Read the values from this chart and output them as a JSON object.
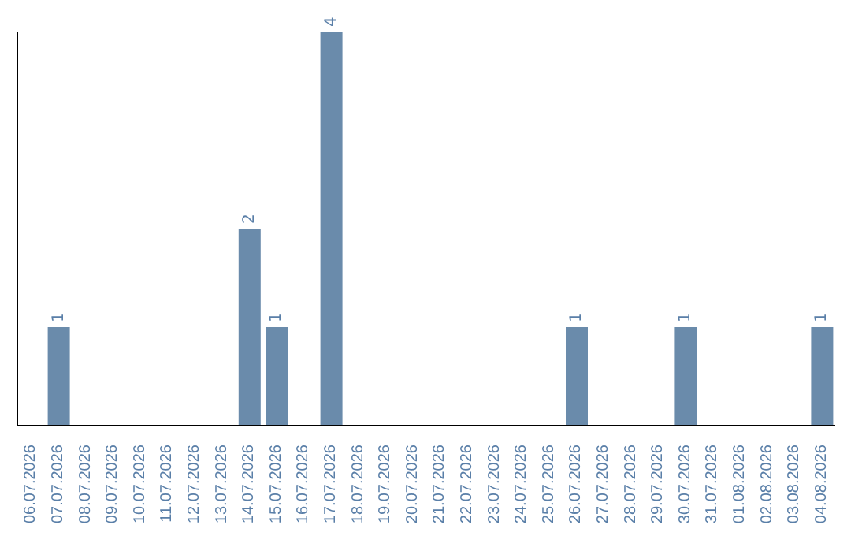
{
  "chart_data": {
    "type": "bar",
    "categories": [
      "06.07.2026",
      "07.07.2026",
      "08.07.2026",
      "09.07.2026",
      "10.07.2026",
      "11.07.2026",
      "12.07.2026",
      "13.07.2026",
      "14.07.2026",
      "15.07.2026",
      "16.07.2026",
      "17.07.2026",
      "18.07.2026",
      "19.07.2026",
      "20.07.2026",
      "21.07.2026",
      "22.07.2026",
      "23.07.2026",
      "24.07.2026",
      "25.07.2026",
      "26.07.2026",
      "27.07.2026",
      "28.07.2026",
      "29.07.2026",
      "30.07.2026",
      "31.07.2026",
      "01.08.2026",
      "02.08.2026",
      "03.08.2026",
      "04.08.2026"
    ],
    "values": [
      0,
      1,
      0,
      0,
      0,
      0,
      0,
      0,
      2,
      1,
      0,
      4,
      0,
      0,
      0,
      0,
      0,
      0,
      0,
      0,
      1,
      0,
      0,
      0,
      1,
      0,
      0,
      0,
      0,
      1
    ],
    "value_labels": [
      null,
      "1",
      null,
      null,
      null,
      null,
      null,
      null,
      "2",
      "1",
      null,
      "4",
      null,
      null,
      null,
      null,
      null,
      null,
      null,
      null,
      "1",
      null,
      null,
      null,
      "1",
      null,
      null,
      null,
      null,
      "1"
    ],
    "color": "#6a8bab",
    "grid": false,
    "legend": false
  }
}
